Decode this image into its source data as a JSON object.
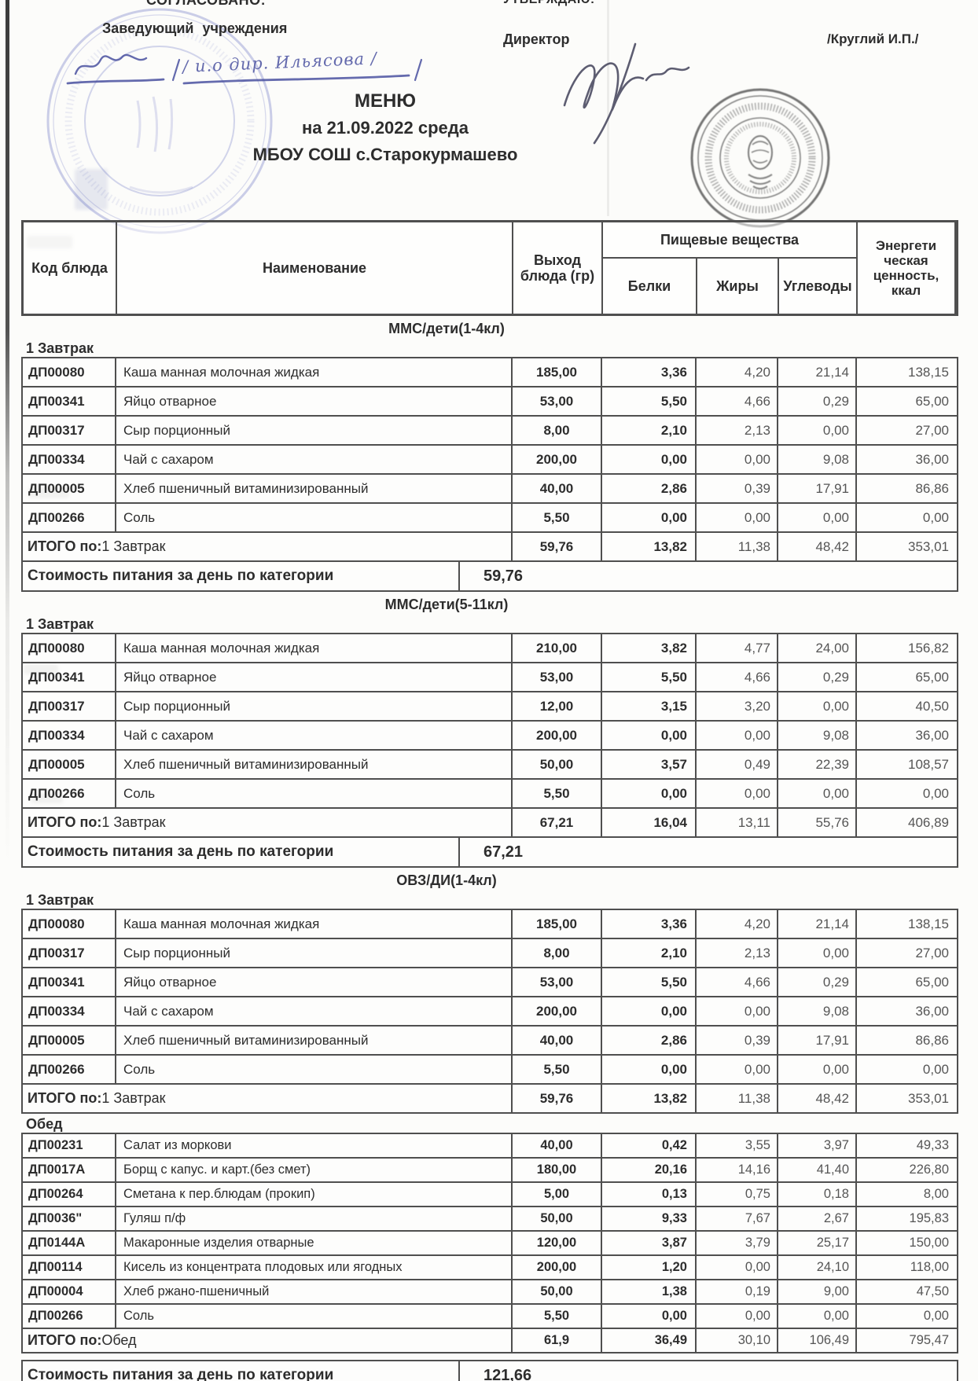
{
  "document": {
    "approval_left": {
      "title": "СОГЛАСОВАНО:",
      "role": "Заведующий  учреждения",
      "handwritten": "/ и.о дир. Ильясова /"
    },
    "approval_right": {
      "title": "УТВЕРЖДАЮ:",
      "role": "Директор",
      "name": "/Круглий И.П./"
    },
    "title_lines": [
      "МЕНЮ",
      "на 21.09.2022  среда",
      "МБОУ СОШ с.Старокурмашево"
    ]
  },
  "table_header": {
    "code": "Код блюда",
    "name": "Наименование",
    "output": "Выход блюда (гр)",
    "nutrients": "Пищевые вещества",
    "protein": "Белки",
    "fat": "Жиры",
    "carbs": "Углеводы",
    "energy": "Энергети ческая ценность, ккал"
  },
  "sections": [
    {
      "category": "ММС/дети(1-4кл)",
      "groups": [
        {
          "meal": "1 Завтрак",
          "rows": [
            [
              "ДП00080",
              "Каша манная молочная жидкая",
              "185,00",
              "3,36",
              "4,20",
              "21,14",
              "138,15"
            ],
            [
              "ДП00341",
              "Яйцо отварное",
              "53,00",
              "5,50",
              "4,66",
              "0,29",
              "65,00"
            ],
            [
              "ДП00317",
              "Сыр порционный",
              "8,00",
              "2,10",
              "2,13",
              "0,00",
              "27,00"
            ],
            [
              "ДП00334",
              "Чай с сахаром",
              "200,00",
              "0,00",
              "0,00",
              "9,08",
              "36,00"
            ],
            [
              "ДП00005",
              "Хлеб пшеничный витаминизированный",
              "40,00",
              "2,86",
              "0,39",
              "17,91",
              "86,86"
            ],
            [
              "ДП00266",
              "Соль",
              "5,50",
              "0,00",
              "0,00",
              "0,00",
              "0,00"
            ]
          ],
          "total": {
            "label": "ИТОГО по: 1 Завтрак",
            "values": [
              "59,76",
              "13,82",
              "11,38",
              "48,42",
              "353,01"
            ]
          }
        }
      ],
      "cost": {
        "label": "Стоимость питания за день по категории",
        "value": "59,76"
      }
    },
    {
      "category": "ММС/дети(5-11кл)",
      "groups": [
        {
          "meal": "1 Завтрак",
          "rows": [
            [
              "ДП00080",
              "Каша манная молочная жидкая",
              "210,00",
              "3,82",
              "4,77",
              "24,00",
              "156,82"
            ],
            [
              "ДП00341",
              "Яйцо отварное",
              "53,00",
              "5,50",
              "4,66",
              "0,29",
              "65,00"
            ],
            [
              "ДП00317",
              "Сыр порционный",
              "12,00",
              "3,15",
              "3,20",
              "0,00",
              "40,50"
            ],
            [
              "ДП00334",
              "Чай с сахаром",
              "200,00",
              "0,00",
              "0,00",
              "9,08",
              "36,00"
            ],
            [
              "ДП00005",
              "Хлеб пшеничный витаминизированный",
              "50,00",
              "3,57",
              "0,49",
              "22,39",
              "108,57"
            ],
            [
              "ДП00266",
              "Соль",
              "5,50",
              "0,00",
              "0,00",
              "0,00",
              "0,00"
            ]
          ],
          "total": {
            "label": "ИТОГО по: 1 Завтрак",
            "values": [
              "67,21",
              "16,04",
              "13,11",
              "55,76",
              "406,89"
            ]
          }
        }
      ],
      "cost": {
        "label": "Стоимость питания за день по категории",
        "value": "67,21"
      }
    },
    {
      "category": "ОВЗ/ДИ(1-4кл)",
      "groups": [
        {
          "meal": "1 Завтрак",
          "rows": [
            [
              "ДП00080",
              "Каша манная молочная жидкая",
              "185,00",
              "3,36",
              "4,20",
              "21,14",
              "138,15"
            ],
            [
              "ДП00317",
              "Сыр порционный",
              "8,00",
              "2,10",
              "2,13",
              "0,00",
              "27,00"
            ],
            [
              "ДП00341",
              "Яйцо отварное",
              "53,00",
              "5,50",
              "4,66",
              "0,29",
              "65,00"
            ],
            [
              "ДП00334",
              "Чай с сахаром",
              "200,00",
              "0,00",
              "0,00",
              "9,08",
              "36,00"
            ],
            [
              "ДП00005",
              "Хлеб пшеничный витаминизированный",
              "40,00",
              "2,86",
              "0,39",
              "17,91",
              "86,86"
            ],
            [
              "ДП00266",
              "Соль",
              "5,50",
              "0,00",
              "0,00",
              "0,00",
              "0,00"
            ]
          ],
          "total": {
            "label": "ИТОГО по: 1 Завтрак",
            "values": [
              "59,76",
              "13,82",
              "11,38",
              "48,42",
              "353,01"
            ]
          }
        },
        {
          "meal": "Обед",
          "rows": [
            [
              "ДП00231",
              "Салат из моркови",
              "40,00",
              "0,42",
              "3,55",
              "3,97",
              "49,33"
            ],
            [
              "ДП0017А",
              "Борщ с капус. и карт.(без смет)",
              "180,00",
              "20,16",
              "14,16",
              "41,40",
              "226,80"
            ],
            [
              "ДП00264",
              "Сметана к пер.блюдам (прокип)",
              "5,00",
              "0,13",
              "0,75",
              "0,18",
              "8,00"
            ],
            [
              "ДП0036\"",
              "Гуляш п/ф",
              "50,00",
              "9,33",
              "7,67",
              "2,67",
              "195,83"
            ],
            [
              "ДП0144А",
              "Макаронные изделия отварные",
              "120,00",
              "3,87",
              "3,79",
              "25,17",
              "150,00"
            ],
            [
              "ДП00114",
              "Кисель из концентрата плодовых или ягодных",
              "200,00",
              "1,20",
              "0,00",
              "24,10",
              "118,00"
            ],
            [
              "ДП00004",
              "Хлеб ржано-пшеничный",
              "50,00",
              "1,38",
              "0,19",
              "9,00",
              "47,50"
            ],
            [
              "ДП00266",
              "Соль",
              "5,50",
              "0,00",
              "0,00",
              "0,00",
              "0,00"
            ]
          ],
          "total": {
            "label": "ИТОГО по: Обед",
            "values": [
              "61,9",
              "36,49",
              "30,10",
              "106,49",
              "795,47"
            ]
          }
        }
      ],
      "cost": {
        "label": "Стоимость питания за день по категории",
        "value": "121,66",
        "partial": true
      }
    }
  ],
  "icons": {
    "seal": "round-official-seal",
    "stamp": "blue-ink-stamp",
    "signature_left": "head-handwritten-signature",
    "signature_right": "director-handwritten-signature"
  },
  "colors": {
    "ink": "#2d2d2d",
    "light_ink": "#555555",
    "border": "#4f4f4f",
    "blue_ink": "#4a51a0"
  }
}
